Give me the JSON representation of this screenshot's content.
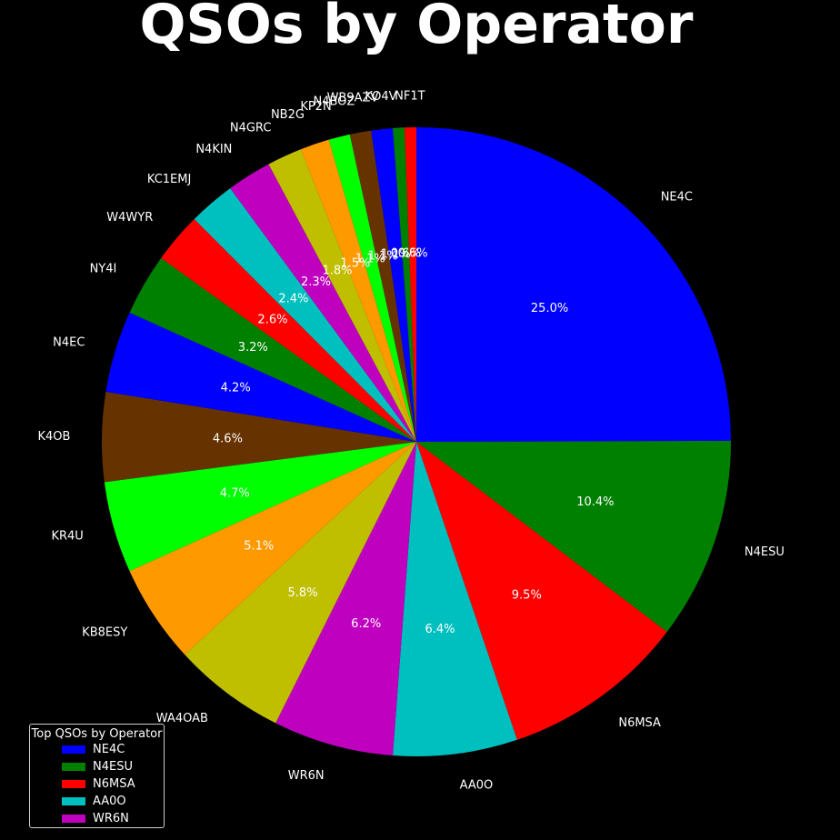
{
  "chart_data": {
    "type": "pie",
    "title": "QSOs by Operator",
    "start_angle_deg": 90,
    "direction": "clockwise",
    "slices": [
      {
        "label": "NE4C",
        "percent": 25.0,
        "pct_label": "25.0%",
        "color": "#0000ff"
      },
      {
        "label": "N4ESU",
        "percent": 10.4,
        "pct_label": "10.4%",
        "color": "#008000"
      },
      {
        "label": "N6MSA",
        "percent": 9.5,
        "pct_label": "9.5%",
        "color": "#ff0000"
      },
      {
        "label": "AA0O",
        "percent": 6.4,
        "pct_label": "6.4%",
        "color": "#00bfbf"
      },
      {
        "label": "WR6N",
        "percent": 6.2,
        "pct_label": "6.2%",
        "color": "#bf00bf"
      },
      {
        "label": "WA4OAB",
        "percent": 5.8,
        "pct_label": "5.8%",
        "color": "#bfbf00"
      },
      {
        "label": "KB8ESY",
        "percent": 5.1,
        "pct_label": "5.1%",
        "color": "#ff9900"
      },
      {
        "label": "KR4U",
        "percent": 4.7,
        "pct_label": "4.7%",
        "color": "#00ff00"
      },
      {
        "label": "K4OB",
        "percent": 4.6,
        "pct_label": "4.6%",
        "color": "#663300"
      },
      {
        "label": "N4EC",
        "percent": 4.2,
        "pct_label": "4.2%",
        "color": "#0000ff"
      },
      {
        "label": "NY4I",
        "percent": 3.2,
        "pct_label": "3.2%",
        "color": "#008000"
      },
      {
        "label": "W4WYR",
        "percent": 2.6,
        "pct_label": "2.6%",
        "color": "#ff0000"
      },
      {
        "label": "KC1EMJ",
        "percent": 2.4,
        "pct_label": "2.4%",
        "color": "#00bfbf"
      },
      {
        "label": "N4KIN",
        "percent": 2.3,
        "pct_label": "2.3%",
        "color": "#bf00bf"
      },
      {
        "label": "N4GRC",
        "percent": 1.8,
        "pct_label": "1.8%",
        "color": "#bfbf00"
      },
      {
        "label": "NB2G",
        "percent": 1.5,
        "pct_label": "1.5%",
        "color": "#ff9900"
      },
      {
        "label": "KP2N",
        "percent": 1.1,
        "pct_label": "1.1%",
        "color": "#00ff00"
      },
      {
        "label": "N4BOZ",
        "percent": 1.1,
        "pct_label": "1.1%",
        "color": "#663300"
      },
      {
        "label": "WB9AZV",
        "percent": 1.1,
        "pct_label": "1.1%",
        "color": "#0000ff"
      },
      {
        "label": "KO4V",
        "percent": 0.6,
        "pct_label": "0.6%",
        "color": "#008000"
      },
      {
        "label": "NF1T",
        "percent": 0.6,
        "pct_label": "0.6%",
        "color": "#ff0000"
      }
    ],
    "legend": {
      "title": "Top QSOs by Operator",
      "placement": "bottom-left",
      "items": [
        {
          "label": "NE4C",
          "color": "#0000ff"
        },
        {
          "label": "N4ESU",
          "color": "#008000"
        },
        {
          "label": "N6MSA",
          "color": "#ff0000"
        },
        {
          "label": "AA0O",
          "color": "#00bfbf"
        },
        {
          "label": "WR6N",
          "color": "#bf00bf"
        }
      ]
    }
  }
}
